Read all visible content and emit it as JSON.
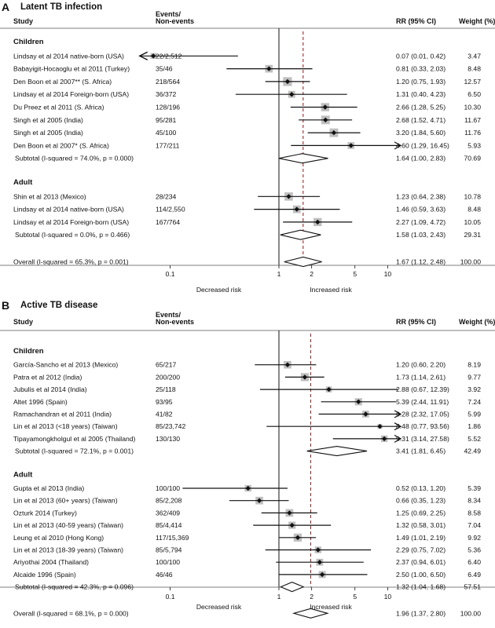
{
  "chart_data": [
    {
      "type": "forest",
      "panel": "A",
      "title": "Latent TB infection",
      "headers": {
        "study": "Study",
        "events_line1": "Events/",
        "events_line2": "Non-events",
        "rr": "RR (95% CI)",
        "weight": "Weight (%)"
      },
      "xscale": "log",
      "xticks": [
        0.1,
        1,
        2,
        5,
        10
      ],
      "xtick_labels": [
        "0.1",
        "1",
        "2",
        "5",
        "10"
      ],
      "null_line": 1,
      "reference_line": 1.67,
      "xlabel_left": "Decreased risk",
      "xlabel_right": "Increased risk",
      "groups": [
        {
          "label": "Children",
          "studies": [
            {
              "name": "Lindsay et al 2014 native-born (USA)",
              "events": "22/2,512",
              "rr": 0.07,
              "lo": 0.01,
              "hi": 0.42,
              "ci_text": "0.07 (0.01, 0.42)",
              "weight": "3.47",
              "w": 3.47
            },
            {
              "name": "Babayigit-Hocaoglu et al 2011 (Turkey)",
              "events": "35/46",
              "rr": 0.81,
              "lo": 0.33,
              "hi": 2.03,
              "ci_text": "0.81 (0.33, 2.03)",
              "weight": "8.48",
              "w": 8.48
            },
            {
              "name": "Den Boon et al 2007** (S. Africa)",
              "events": "218/564",
              "rr": 1.2,
              "lo": 0.75,
              "hi": 1.93,
              "ci_text": "1.20 (0.75, 1.93)",
              "weight": "12.57",
              "w": 12.57
            },
            {
              "name": "Lindsay et al 2014 Foreign-born (USA)",
              "events": "36/372",
              "rr": 1.31,
              "lo": 0.4,
              "hi": 4.23,
              "ci_text": "1.31 (0.40, 4.23)",
              "weight": "6.50",
              "w": 6.5
            },
            {
              "name": "Du Preez et al 2011 (S. Africa)",
              "events": "128/196",
              "rr": 2.66,
              "lo": 1.28,
              "hi": 5.25,
              "ci_text": "2.66 (1.28, 5.25)",
              "weight": "10.30",
              "w": 10.3
            },
            {
              "name": "Singh et al 2005 (India)",
              "events": "95/281",
              "rr": 2.68,
              "lo": 1.52,
              "hi": 4.71,
              "ci_text": "2.68 (1.52, 4.71)",
              "weight": "11.67",
              "w": 11.67
            },
            {
              "name": "Singh et al 2005 (India)",
              "events": "45/100",
              "rr": 3.2,
              "lo": 1.84,
              "hi": 5.6,
              "ci_text": "3.20 (1.84, 5.60)",
              "weight": "11.76",
              "w": 11.76
            },
            {
              "name": "Den Boon et al 2007* (S. Africa)",
              "events": "177/211",
              "rr": 4.6,
              "lo": 1.29,
              "hi": 16.45,
              "ci_text": "4.60 (1.29, 16.45)",
              "weight": "5.93",
              "w": 5.93
            }
          ],
          "subtotal": {
            "label": "Subtotal  (I-squared = 74.0%, p = 0.000)",
            "rr": 1.64,
            "lo": 1.0,
            "hi": 2.83,
            "ci_text": "1.64 (1.00, 2.83)",
            "weight": "70.69"
          }
        },
        {
          "label": "Adult",
          "studies": [
            {
              "name": "Shin et al 2013 (Mexico)",
              "events": "28/234",
              "rr": 1.23,
              "lo": 0.64,
              "hi": 2.38,
              "ci_text": "1.23 (0.64, 2.38)",
              "weight": "10.78",
              "w": 10.78
            },
            {
              "name": "Lindsay et al 2014 native-born (USA)",
              "events": "114/2,550",
              "rr": 1.46,
              "lo": 0.59,
              "hi": 3.63,
              "ci_text": "1.46 (0.59, 3.63)",
              "weight": "8.48",
              "w": 8.48
            },
            {
              "name": "Lindsay et al 2014 Foreign-born (USA)",
              "events": "167/764",
              "rr": 2.27,
              "lo": 1.09,
              "hi": 4.72,
              "ci_text": "2.27 (1.09, 4.72)",
              "weight": "10.05",
              "w": 10.05
            }
          ],
          "subtotal": {
            "label": "Subtotal  (I-squared = 0.0%, p = 0.466)",
            "rr": 1.58,
            "lo": 1.03,
            "hi": 2.43,
            "ci_text": "1.58 (1.03, 2.43)",
            "weight": "29.31"
          }
        }
      ],
      "overall": {
        "label": "Overall  (I-squared = 65.3%, p = 0.001)",
        "rr": 1.67,
        "lo": 1.12,
        "hi": 2.48,
        "ci_text": "1.67 (1.12, 2.48)",
        "weight": "100.00"
      }
    },
    {
      "type": "forest",
      "panel": "B",
      "title": "Active TB disease",
      "headers": {
        "study": "Study",
        "events_line1": "Events/",
        "events_line2": "Non-events",
        "rr": "RR (95% CI)",
        "weight": "Weight (%)"
      },
      "xscale": "log",
      "xticks": [
        0.1,
        1,
        2,
        5,
        10
      ],
      "xtick_labels": [
        "0.1",
        "1",
        "2",
        "5",
        "10"
      ],
      "null_line": 1,
      "reference_line": 1.96,
      "xlabel_left": "Decreased risk",
      "xlabel_right": "Increased risk",
      "groups": [
        {
          "label": "Children",
          "studies": [
            {
              "name": "García-Sancho  et al 2013 (Mexico)",
              "events": "65/217",
              "rr": 1.2,
              "lo": 0.6,
              "hi": 2.2,
              "ci_text": "1.20 (0.60, 2.20)",
              "weight": "8.19",
              "w": 8.19
            },
            {
              "name": "Patra et al 2012 (India)",
              "events": "200/200",
              "rr": 1.73,
              "lo": 1.14,
              "hi": 2.61,
              "ci_text": "1.73 (1.14, 2.61)",
              "weight": "9.77",
              "w": 9.77
            },
            {
              "name": "Jubulis et al 2014 (India)",
              "events": "25/118",
              "rr": 2.88,
              "lo": 0.67,
              "hi": 12.39,
              "ci_text": "2.88 (0.67, 12.39)",
              "weight": "3.92",
              "w": 3.92
            },
            {
              "name": "Altet 1996 (Spain)",
              "events": "93/95",
              "rr": 5.39,
              "lo": 2.44,
              "hi": 11.91,
              "ci_text": "5.39 (2.44, 11.91)",
              "weight": "7.24",
              "w": 7.24
            },
            {
              "name": "Ramachandran et al 2011 (India)",
              "events": "41/82",
              "rr": 6.28,
              "lo": 2.32,
              "hi": 17.05,
              "ci_text": "6.28 (2.32, 17.05)",
              "weight": "5.99",
              "w": 5.99
            },
            {
              "name": "Lin et al 2013 (<18 years) (Taiwan)",
              "events": "85/23,742",
              "rr": 8.48,
              "lo": 0.77,
              "hi": 93.56,
              "ci_text": "8.48 (0.77, 93.56)",
              "weight": "1.86",
              "w": 1.86
            },
            {
              "name": "Tipayamongkholgul et al 2005 (Thailand)",
              "events": "130/130",
              "rr": 9.31,
              "lo": 3.14,
              "hi": 27.58,
              "ci_text": "9.31 (3.14, 27.58)",
              "weight": "5.52",
              "w": 5.52
            }
          ],
          "subtotal": {
            "label": "Subtotal  (I-squared = 72.1%, p = 0.001)",
            "rr": 3.41,
            "lo": 1.81,
            "hi": 6.45,
            "ci_text": "3.41 (1.81, 6.45)",
            "weight": "42.49"
          }
        },
        {
          "label": "Adult",
          "studies": [
            {
              "name": "Gupta et al 2013 (India)",
              "events": "100/100",
              "rr": 0.52,
              "lo": 0.13,
              "hi": 1.2,
              "ci_text": "0.52 (0.13, 1.20)",
              "weight": "5.39",
              "w": 5.39
            },
            {
              "name": "Lin et al 2013 (60+ years) (Taiwan)",
              "events": "85/2,208",
              "rr": 0.66,
              "lo": 0.35,
              "hi": 1.23,
              "ci_text": "0.66 (0.35, 1.23)",
              "weight": "8.34",
              "w": 8.34
            },
            {
              "name": "Ozturk 2014 (Turkey)",
              "events": "362/409",
              "rr": 1.25,
              "lo": 0.69,
              "hi": 2.25,
              "ci_text": "1.25 (0.69, 2.25)",
              "weight": "8.58",
              "w": 8.58
            },
            {
              "name": "Lin et al 2013 (40-59 years) (Taiwan)",
              "events": "85/4,414",
              "rr": 1.32,
              "lo": 0.58,
              "hi": 3.01,
              "ci_text": "1.32 (0.58, 3.01)",
              "weight": "7.04",
              "w": 7.04
            },
            {
              "name": "Leung et al 2010 (Hong Kong)",
              "events": "117/15,369",
              "rr": 1.49,
              "lo": 1.01,
              "hi": 2.19,
              "ci_text": "1.49 (1.01, 2.19)",
              "weight": "9.92",
              "w": 9.92
            },
            {
              "name": "Lin et al 2013 (18-39 years) (Taiwan)",
              "events": "85/5,794",
              "rr": 2.29,
              "lo": 0.75,
              "hi": 7.02,
              "ci_text": "2.29 (0.75, 7.02)",
              "weight": "5.36",
              "w": 5.36
            },
            {
              "name": "Ariyothai 2004 (Thailand)",
              "events": "100/100",
              "rr": 2.37,
              "lo": 0.94,
              "hi": 6.01,
              "ci_text": "2.37 (0.94, 6.01)",
              "weight": "6.40",
              "w": 6.4
            },
            {
              "name": "Alcaide 1996 (Spain)",
              "events": "46/46",
              "rr": 2.5,
              "lo": 1.0,
              "hi": 6.5,
              "ci_text": "2.50 (1.00, 6.50)",
              "weight": "6.49",
              "w": 6.49
            }
          ],
          "subtotal": {
            "label": "Subtotal  (I-squared = 42.3%, p = 0.096)",
            "rr": 1.32,
            "lo": 1.04,
            "hi": 1.68,
            "ci_text": "1.32 (1.04, 1.68)",
            "weight": "57.51"
          }
        }
      ],
      "overall": {
        "label": "Overall  (I-squared = 68.1%, p = 0.000)",
        "rr": 1.96,
        "lo": 1.37,
        "hi": 2.8,
        "ci_text": "1.96 (1.37, 2.80)",
        "weight": "100.00"
      }
    }
  ],
  "colors": {
    "ink": "#111111",
    "box": "#bfbfbf",
    "reference_line": "#8b1a1a",
    "rule": "#555555"
  }
}
